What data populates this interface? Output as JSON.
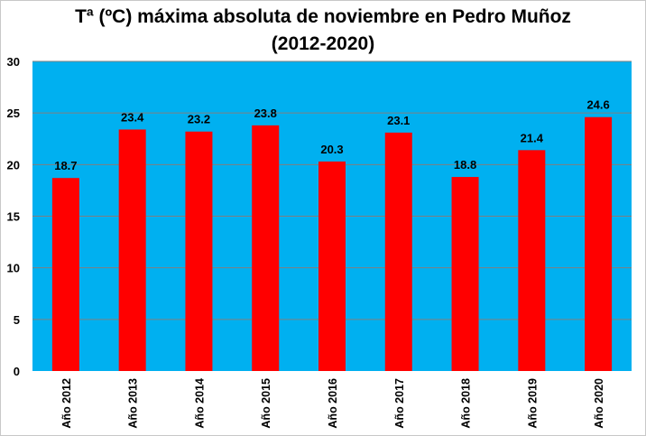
{
  "chart_data": {
    "type": "bar",
    "title_line1": "Tª (ºC) máxima absoluta de noviembre en Pedro Muñoz",
    "title_line2": "(2012-2020)",
    "categories": [
      "Año 2012",
      "Año 2013",
      "Año 2014",
      "Año 2015",
      "Año 2016",
      "Año 2017",
      "Año 2018",
      "Año 2019",
      "Año 2020"
    ],
    "values": [
      18.7,
      23.4,
      23.2,
      23.8,
      20.3,
      23.1,
      18.8,
      21.4,
      24.6
    ],
    "data_labels": [
      "18.7",
      "23.4",
      "23.2",
      "23.8",
      "20.3",
      "23.1",
      "18.8",
      "21.4",
      "24.6"
    ],
    "yticks": [
      "0",
      "5",
      "10",
      "15",
      "20",
      "25",
      "30"
    ],
    "ylim": [
      0,
      30
    ],
    "grid": true,
    "legend": "none",
    "colors": {
      "bar": "#ff0000",
      "plot_background": "#00b0f0",
      "gridline": "#7f7f7f"
    }
  }
}
